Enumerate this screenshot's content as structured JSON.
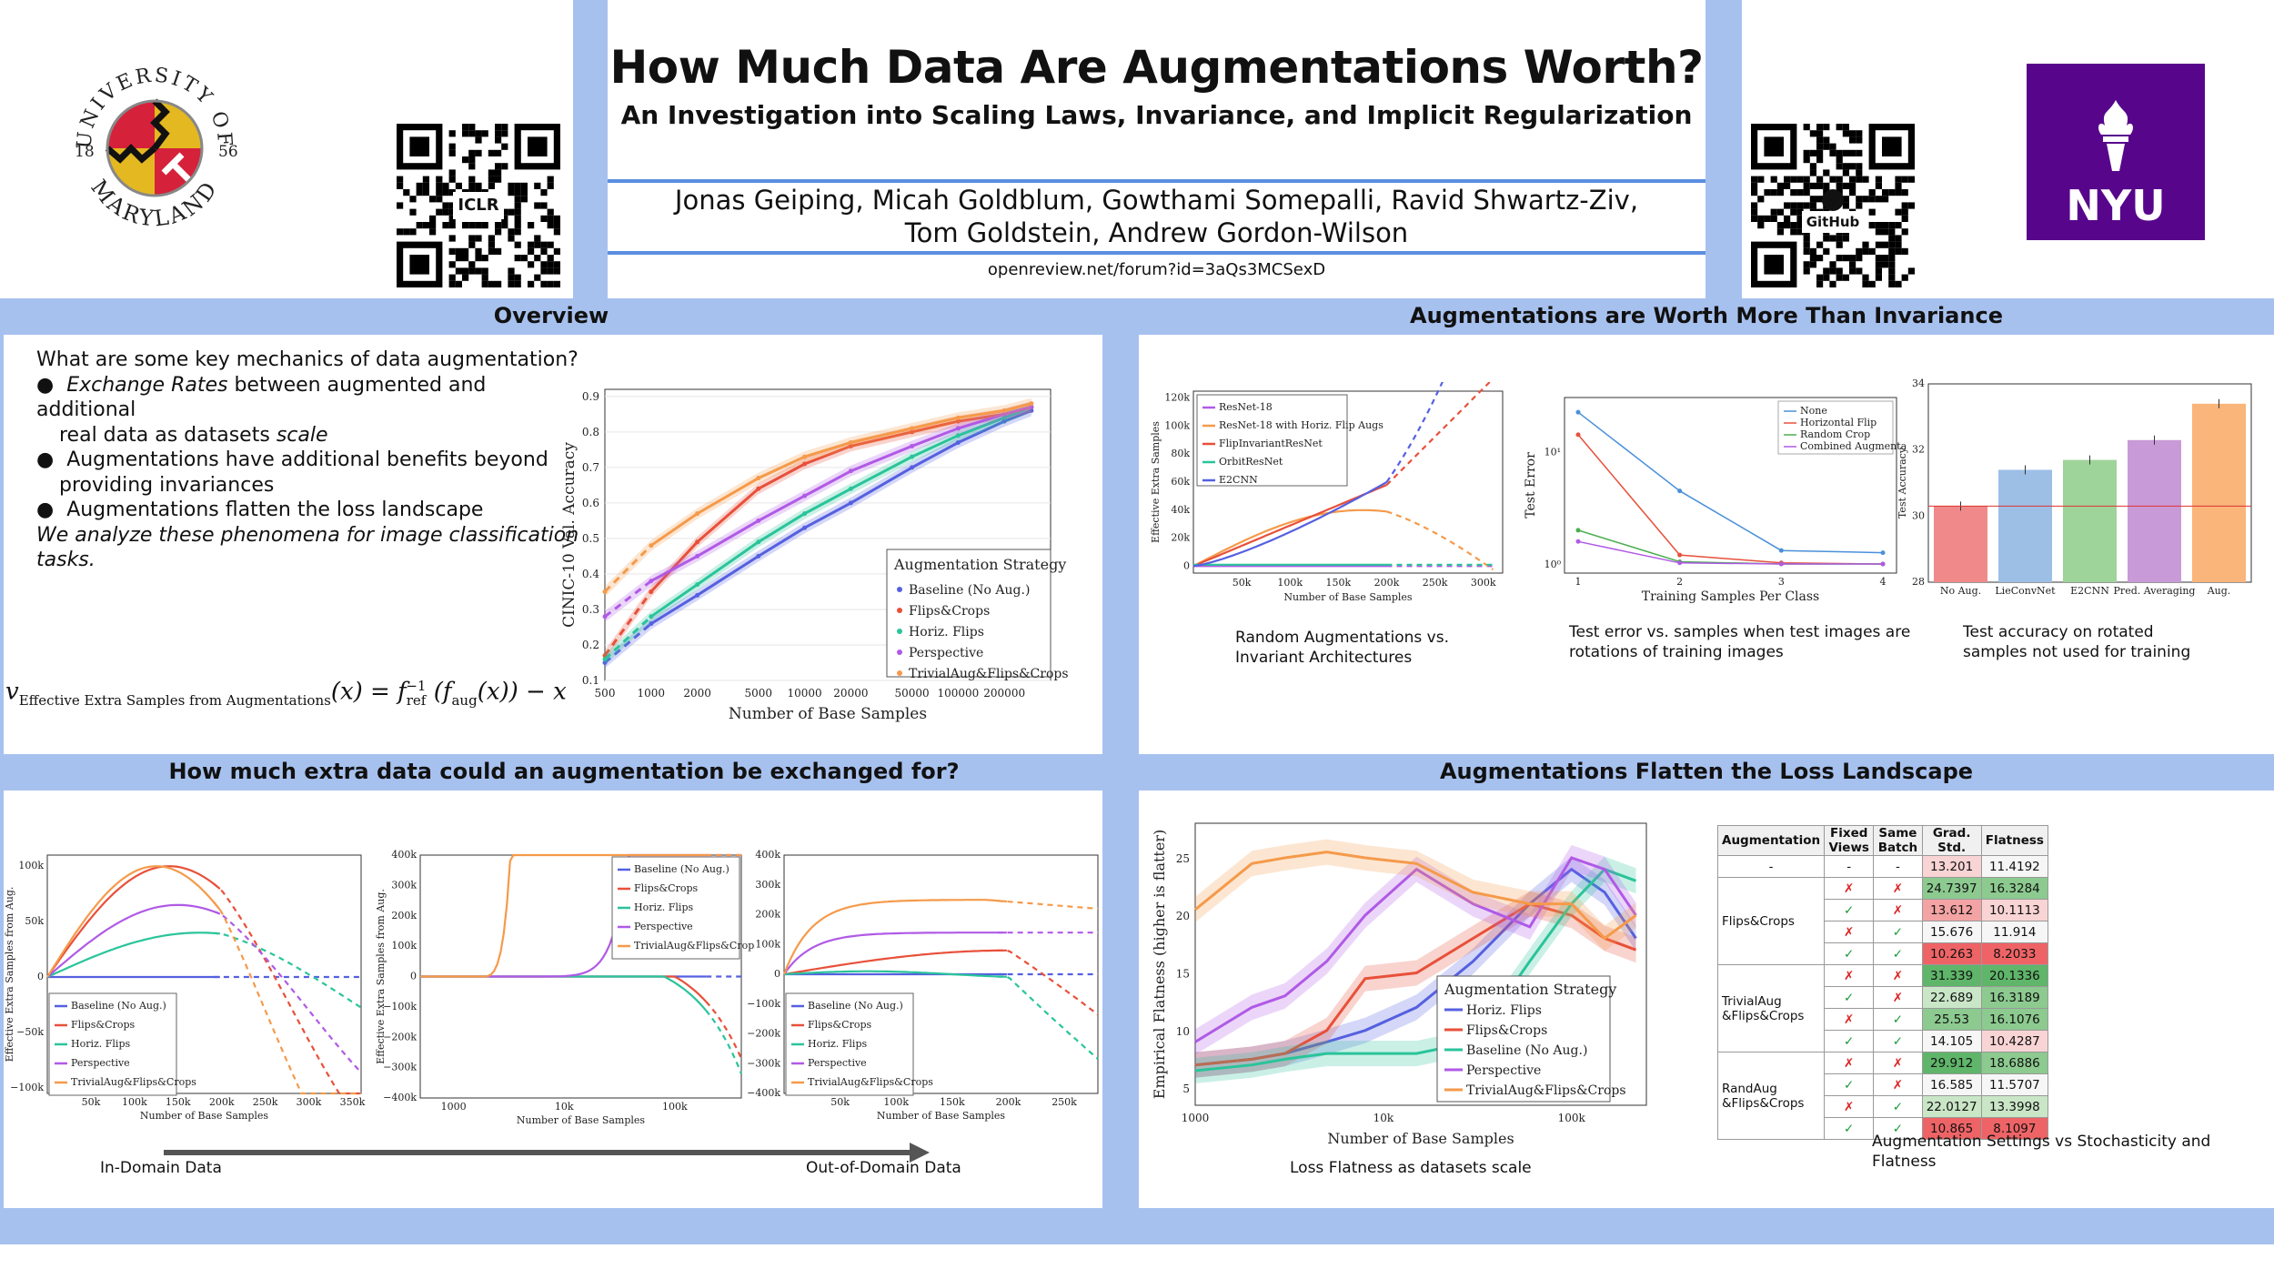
{
  "header": {
    "title": "How Much Data Are Augmentations Worth?",
    "subtitle": "An Investigation into Scaling Laws, Invariance, and Implicit Regularization",
    "authors_line1": "Jonas Geiping, Micah Goldblum, Gowthami Somepalli, Ravid Shwartz-Ziv,",
    "authors_line2": "Tom Goldstein, Andrew Gordon-Wilson",
    "url": "openreview.net/forum?id=3aQs3MCSexD",
    "umd_top": "UNIVERSITY OF",
    "umd_bottom": "MARYLAND",
    "umd_year_left": "18",
    "umd_year_right": "56",
    "qr_left_badge": "ICLR",
    "qr_right_badge": "GitHub",
    "nyu_label": "NYU"
  },
  "sections": {
    "overview": "Overview",
    "invariance": "Augmentations are Worth More Than Invariance",
    "exchange": "How much extra data could an augmentation be exchanged for?",
    "flatten": "Augmentations Flatten the Loss Landscape"
  },
  "overview": {
    "question": "What are some key mechanics of data augmentation?",
    "b1_em": "Exchange Rates",
    "b1_rest": " between augmented and additional",
    "b1_line2_a": "real data as datasets ",
    "b1_line2_em": "scale",
    "b2_line1": "Augmentations have additional benefits beyond",
    "b2_line2": "providing invariances",
    "b3": "Augmentations flatten the loss landscape",
    "conclusion_line1": "We analyze these phenomena for image classification",
    "conclusion_line2": "tasks.",
    "formula_lhs": "v",
    "formula_sub": "Effective Extra Samples from Augmentations",
    "formula_rhs": "(x) = f",
    "formula_ref": "ref",
    "formula_inv": "−1",
    "formula_mid": " (f",
    "formula_aug": "aug",
    "formula_end": "(x)) − x"
  },
  "captions": {
    "inv1_line1": "Random Augmentations vs.",
    "inv1_line2": "Invariant Architectures",
    "inv2_line1": "Test error vs. samples when test images are",
    "inv2_line2": "rotations of training images",
    "inv3_line1": "Test accuracy on rotated",
    "inv3_line2": "samples not used for training",
    "in_domain": "In-Domain Data",
    "out_domain": "Out-of-Domain Data",
    "flat_line": "Loss Flatness as datasets scale",
    "table_line1": "Augmentation Settings vs Stochasticity and",
    "table_line2": "Flatness"
  },
  "colors": {
    "baseline": "#5560e0",
    "flipscrops": "#e8503a",
    "hflips": "#2ac49a",
    "perspective": "#b05ae6",
    "trivial": "#f59a4a",
    "band": "#a7c1ef"
  },
  "chart_data": [
    {
      "id": "cinic",
      "type": "line",
      "xlabel": "Number of Base Samples",
      "ylabel": "CINIC-10 Val. Accuracy",
      "x_ticks": [
        "500",
        "1000",
        "2000",
        "5000",
        "10000",
        "20000",
        "50000",
        "100000",
        "200000"
      ],
      "y_ticks": [
        "0.1",
        "0.2",
        "0.3",
        "0.4",
        "0.5",
        "0.6",
        "0.7",
        "0.8",
        "0.9"
      ],
      "legend_title": "Augmentation Strategy",
      "legend": [
        "Baseline (No Aug.)",
        "Flips&Crops",
        "Horiz. Flips",
        "Perspective",
        "TrivialAug&Flips&Crops"
      ],
      "series": [
        {
          "name": "Baseline (No Aug.)",
          "x": [
            500,
            1000,
            2000,
            5000,
            10000,
            20000,
            50000,
            100000,
            200000,
            300000
          ],
          "values": [
            0.15,
            0.26,
            0.34,
            0.45,
            0.53,
            0.6,
            0.7,
            0.77,
            0.83,
            0.86
          ]
        },
        {
          "name": "Flips&Crops",
          "x": [
            500,
            1000,
            2000,
            5000,
            10000,
            20000,
            50000,
            100000,
            200000,
            300000
          ],
          "values": [
            0.17,
            0.35,
            0.49,
            0.64,
            0.71,
            0.76,
            0.8,
            0.83,
            0.85,
            0.87
          ]
        },
        {
          "name": "Horiz. Flips",
          "x": [
            500,
            1000,
            2000,
            5000,
            10000,
            20000,
            50000,
            100000,
            200000,
            300000
          ],
          "values": [
            0.16,
            0.28,
            0.37,
            0.49,
            0.57,
            0.64,
            0.73,
            0.79,
            0.84,
            0.87
          ]
        },
        {
          "name": "Perspective",
          "x": [
            500,
            1000,
            2000,
            5000,
            10000,
            20000,
            50000,
            100000,
            200000,
            300000
          ],
          "values": [
            0.28,
            0.38,
            0.45,
            0.55,
            0.62,
            0.69,
            0.76,
            0.81,
            0.85,
            0.87
          ]
        },
        {
          "name": "TrivialAug&Flips&Crops",
          "x": [
            500,
            1000,
            2000,
            5000,
            10000,
            20000,
            50000,
            100000,
            200000,
            300000
          ],
          "values": [
            0.35,
            0.48,
            0.57,
            0.67,
            0.73,
            0.77,
            0.81,
            0.84,
            0.86,
            0.88
          ]
        }
      ]
    },
    {
      "id": "invariant",
      "type": "line",
      "xlabel": "Number of Base Samples",
      "ylabel": "Effective Extra Samples",
      "x_ticks": [
        "50k",
        "100k",
        "150k",
        "200k",
        "250k",
        "300k"
      ],
      "y_ticks": [
        "0",
        "20k",
        "40k",
        "60k",
        "80k",
        "100k",
        "120k"
      ],
      "legend": [
        "ResNet-18",
        "ResNet-18 with Horiz. Flip Augs",
        "FlipInvariantResNet",
        "OrbitResNet",
        "E2CNN"
      ]
    },
    {
      "id": "test_error",
      "type": "line",
      "xlabel": "Training Samples Per Class",
      "ylabel": "Test Error",
      "x_ticks": [
        "1",
        "2",
        "3",
        "4"
      ],
      "y_ticks": [
        "10⁰",
        "10¹"
      ],
      "legend": [
        "None",
        "Horizontal Flip",
        "Random Crop",
        "Combined Augmentation"
      ]
    },
    {
      "id": "rot_acc",
      "type": "bar",
      "ylabel": "Test Accuracy",
      "categories": [
        "No Aug.",
        "LieConvNet",
        "E2CNN",
        "Pred. Averaging",
        "Aug."
      ],
      "values": [
        30.3,
        31.4,
        31.7,
        32.3,
        33.4
      ],
      "y_ticks": [
        "28",
        "30",
        "32",
        "34"
      ],
      "ylim": [
        28,
        34
      ]
    },
    {
      "id": "in_domain",
      "type": "line",
      "xlabel": "Number of Base Samples",
      "ylabel": "Effective Extra Samples from Aug.",
      "x_ticks": [
        "50k",
        "100k",
        "150k",
        "200k",
        "250k",
        "300k",
        "350k"
      ],
      "y_ticks": [
        "100k",
        "50k",
        "0",
        "−50k",
        "−100k"
      ],
      "legend": [
        "Baseline (No Aug.)",
        "Flips&Crops",
        "Horiz. Flips",
        "Perspective",
        "TrivialAug&Flips&Crops"
      ]
    },
    {
      "id": "mid_domain",
      "type": "line",
      "xlabel": "Number of Base Samples",
      "ylabel": "Effective Extra Samples from Aug.",
      "x_ticks": [
        "1000",
        "10k",
        "100k"
      ],
      "y_ticks": [
        "400k",
        "300k",
        "200k",
        "100k",
        "0",
        "−100k",
        "−200k",
        "−300k",
        "−400k"
      ],
      "legend": [
        "Baseline (No Aug.)",
        "Flips&Crops",
        "Horiz. Flips",
        "Perspective",
        "TrivialAug&Flips&Crops"
      ]
    },
    {
      "id": "out_domain",
      "type": "line",
      "xlabel": "Number of Base Samples",
      "ylabel": "",
      "x_ticks": [
        "50k",
        "100k",
        "150k",
        "200k",
        "250k"
      ],
      "y_ticks": [
        "400k",
        "300k",
        "200k",
        "100k",
        "0",
        "−100k",
        "−200k",
        "−300k",
        "−400k"
      ],
      "legend": [
        "Baseline (No Aug.)",
        "Flips&Crops",
        "Horiz. Flips",
        "Perspective",
        "TrivialAug&Flips&Crops"
      ]
    },
    {
      "id": "flatness",
      "type": "line",
      "xlabel": "Number of Base Samples",
      "ylabel": "Empirical Flatness (higher is flatter)",
      "x_ticks": [
        "1000",
        "10k",
        "100k"
      ],
      "y_ticks": [
        "5",
        "10",
        "15",
        "20",
        "25"
      ],
      "legend_title": "Augmentation Strategy",
      "legend": [
        "Horiz. Flips",
        "Flips&Crops",
        "Baseline (No Aug.)",
        "Perspective",
        "TrivialAug&Flips&Crops"
      ]
    },
    {
      "id": "stoch_table",
      "type": "table",
      "columns": [
        "Augmentation",
        "Fixed Views",
        "Same Batch",
        "Grad. Std.",
        "Flatness"
      ],
      "rows": [
        {
          "aug": "-",
          "fv": "-",
          "sb": "-",
          "gs": "13.201",
          "fl": "11.4192",
          "cg": "r3",
          "cf": "w"
        },
        {
          "aug": "Flips&Crops",
          "fv": "✗",
          "sb": "✗",
          "gs": "24.7397",
          "fl": "16.3284",
          "cg": "g2",
          "cf": "g2"
        },
        {
          "aug": "",
          "fv": "✓",
          "sb": "✗",
          "gs": "13.612",
          "fl": "10.1113",
          "cg": "r2",
          "cf": "r3"
        },
        {
          "aug": "",
          "fv": "✗",
          "sb": "✓",
          "gs": "15.676",
          "fl": "11.914",
          "cg": "w",
          "cf": "w"
        },
        {
          "aug": "",
          "fv": "✓",
          "sb": "✓",
          "gs": "10.263",
          "fl": "8.2033",
          "cg": "r1",
          "cf": "r1"
        },
        {
          "aug": "TrivialAug",
          "aug2": "&Flips&Crops",
          "fv": "✗",
          "sb": "✗",
          "gs": "31.339",
          "fl": "20.1336",
          "cg": "g1",
          "cf": "g1"
        },
        {
          "aug": "",
          "fv": "✓",
          "sb": "✗",
          "gs": "22.689",
          "fl": "16.3189",
          "cg": "g3",
          "cf": "g2"
        },
        {
          "aug": "",
          "fv": "✗",
          "sb": "✓",
          "gs": "25.53",
          "fl": "16.1076",
          "cg": "g2",
          "cf": "g2"
        },
        {
          "aug": "",
          "fv": "✓",
          "sb": "✓",
          "gs": "14.105",
          "fl": "10.4287",
          "cg": "w",
          "cf": "r3"
        },
        {
          "aug": "RandAug",
          "aug2": "&Flips&Crops",
          "fv": "✗",
          "sb": "✗",
          "gs": "29.912",
          "fl": "18.6886",
          "cg": "g1",
          "cf": "g2"
        },
        {
          "aug": "",
          "fv": "✓",
          "sb": "✗",
          "gs": "16.585",
          "fl": "11.5707",
          "cg": "w",
          "cf": "w"
        },
        {
          "aug": "",
          "fv": "✗",
          "sb": "✓",
          "gs": "22.0127",
          "fl": "13.3998",
          "cg": "g3",
          "cf": "g3"
        },
        {
          "aug": "",
          "fv": "✓",
          "sb": "✓",
          "gs": "10.865",
          "fl": "8.1097",
          "cg": "r1",
          "cf": "r1"
        }
      ]
    }
  ]
}
